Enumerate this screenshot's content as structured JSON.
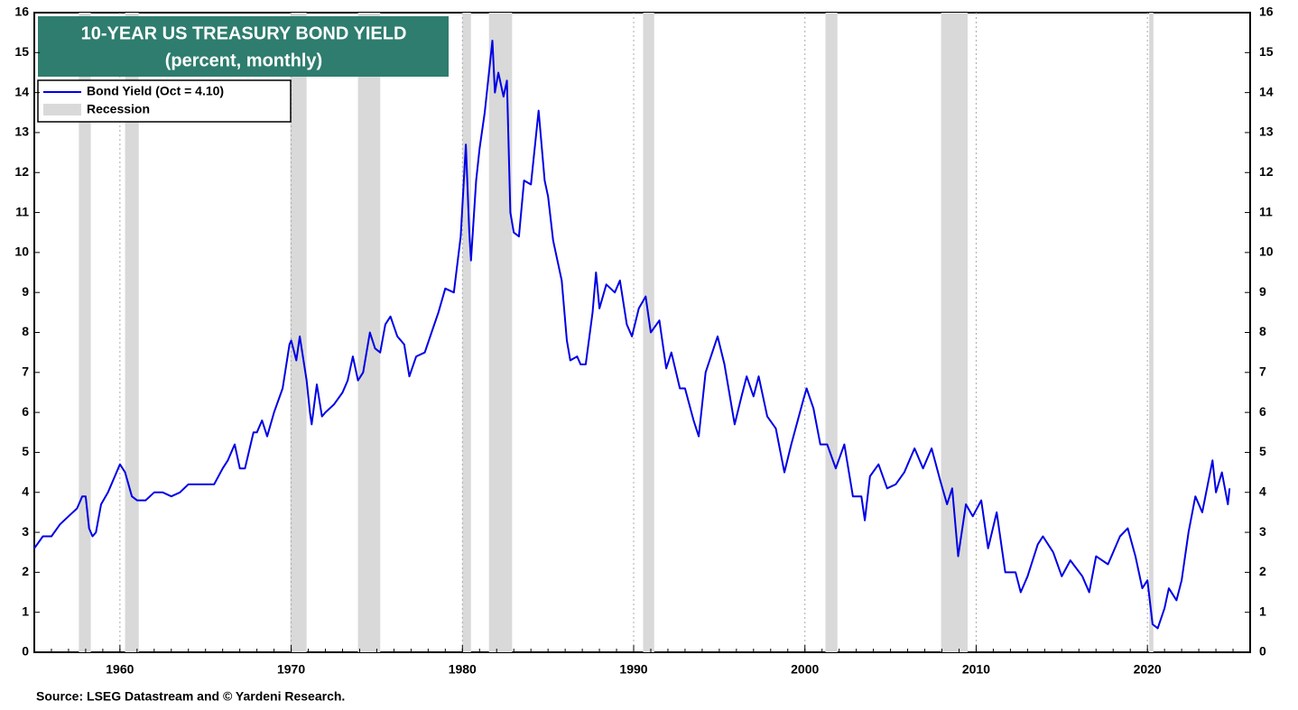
{
  "chart_data": {
    "type": "line",
    "title": "10-YEAR US TREASURY BOND YIELD",
    "subtitle": "(percent, monthly)",
    "source": "Source: LSEG Datastream and © Yardeni Research.",
    "recession_label": "Recession",
    "recession_color": "#d9d9d9",
    "recessions": [
      [
        1957.6,
        1958.3
      ],
      [
        1960.3,
        1961.1
      ],
      [
        1969.95,
        1970.9
      ],
      [
        1973.9,
        1975.2
      ],
      [
        1980.0,
        1980.5
      ],
      [
        1981.55,
        1982.9
      ],
      [
        1990.55,
        1991.2
      ],
      [
        2001.2,
        2001.9
      ],
      [
        2007.95,
        2009.5
      ],
      [
        2020.1,
        2020.35
      ]
    ],
    "xlim": [
      1955,
      2026
    ],
    "xticks": [
      1960,
      1970,
      1980,
      1990,
      2000,
      2010,
      2020
    ],
    "ylim": [
      0,
      16
    ],
    "yticks": [
      0,
      1,
      2,
      3,
      4,
      5,
      6,
      7,
      8,
      9,
      10,
      11,
      12,
      13,
      14,
      15,
      16
    ],
    "grid": true,
    "legend": "upper left",
    "x": [
      1955.0,
      1955.5,
      1956.0,
      1956.5,
      1957.0,
      1957.5,
      1957.8,
      1958.0,
      1958.2,
      1958.4,
      1958.6,
      1958.9,
      1959.3,
      1959.7,
      1960.0,
      1960.3,
      1960.7,
      1961.0,
      1961.5,
      1962.0,
      1962.5,
      1963.0,
      1963.5,
      1964.0,
      1964.5,
      1965.0,
      1965.5,
      1966.0,
      1966.3,
      1966.7,
      1967.0,
      1967.3,
      1967.8,
      1968.0,
      1968.3,
      1968.6,
      1969.0,
      1969.5,
      1969.9,
      1970.0,
      1970.3,
      1970.5,
      1970.9,
      1971.1,
      1971.2,
      1971.5,
      1971.8,
      1972.0,
      1972.5,
      1973.0,
      1973.3,
      1973.6,
      1973.9,
      1974.2,
      1974.6,
      1974.9,
      1975.2,
      1975.5,
      1975.8,
      1976.2,
      1976.6,
      1976.9,
      1977.3,
      1977.8,
      1978.2,
      1978.6,
      1979.0,
      1979.5,
      1979.9,
      1980.2,
      1980.4,
      1980.5,
      1980.8,
      1981.0,
      1981.3,
      1981.75,
      1981.9,
      1982.1,
      1982.4,
      1982.6,
      1982.8,
      1983.0,
      1983.3,
      1983.6,
      1984.0,
      1984.45,
      1984.8,
      1985.0,
      1985.3,
      1985.8,
      1986.1,
      1986.3,
      1986.7,
      1986.9,
      1987.2,
      1987.6,
      1987.8,
      1988.0,
      1988.4,
      1988.9,
      1989.2,
      1989.6,
      1989.9,
      1990.3,
      1990.7,
      1991.0,
      1991.5,
      1991.9,
      1992.2,
      1992.7,
      1993.0,
      1993.5,
      1993.8,
      1994.2,
      1994.9,
      1995.3,
      1995.9,
      1996.3,
      1996.6,
      1997.0,
      1997.3,
      1997.8,
      1998.3,
      1998.8,
      1999.2,
      1999.9,
      2000.1,
      2000.5,
      2000.9,
      2001.3,
      2001.8,
      2002.3,
      2002.8,
      2003.3,
      2003.5,
      2003.8,
      2004.3,
      2004.8,
      2005.3,
      2005.8,
      2006.4,
      2006.9,
      2007.4,
      2007.9,
      2008.3,
      2008.6,
      2008.95,
      2009.4,
      2009.8,
      2010.3,
      2010.7,
      2011.2,
      2011.7,
      2012.3,
      2012.6,
      2013.0,
      2013.6,
      2013.9,
      2014.5,
      2015.0,
      2015.5,
      2016.2,
      2016.6,
      2017.0,
      2017.7,
      2018.4,
      2018.85,
      2019.3,
      2019.7,
      2020.0,
      2020.3,
      2020.6,
      2021.0,
      2021.25,
      2021.7,
      2022.0,
      2022.4,
      2022.8,
      2023.2,
      2023.8,
      2024.0,
      2024.35,
      2024.7,
      2024.8
    ],
    "series": [
      {
        "name": "Bond Yield (Oct = 4.10)",
        "color": "#0000e6",
        "values": [
          2.6,
          2.9,
          2.9,
          3.2,
          3.4,
          3.6,
          3.9,
          3.9,
          3.1,
          2.9,
          3.0,
          3.7,
          4.0,
          4.4,
          4.7,
          4.5,
          3.9,
          3.8,
          3.8,
          4.0,
          4.0,
          3.9,
          4.0,
          4.2,
          4.2,
          4.2,
          4.2,
          4.6,
          4.8,
          5.2,
          4.6,
          4.6,
          5.5,
          5.5,
          5.8,
          5.4,
          6.0,
          6.6,
          7.7,
          7.8,
          7.3,
          7.9,
          6.8,
          6.0,
          5.7,
          6.7,
          5.9,
          6.0,
          6.2,
          6.5,
          6.8,
          7.4,
          6.8,
          7.0,
          8.0,
          7.6,
          7.5,
          8.2,
          8.4,
          7.9,
          7.7,
          6.9,
          7.4,
          7.5,
          8.0,
          8.5,
          9.1,
          9.0,
          10.4,
          12.7,
          10.5,
          9.8,
          11.8,
          12.6,
          13.5,
          15.3,
          14.0,
          14.5,
          13.9,
          14.3,
          11.0,
          10.5,
          10.4,
          11.8,
          11.7,
          13.55,
          11.8,
          11.4,
          10.3,
          9.3,
          7.8,
          7.3,
          7.4,
          7.2,
          7.2,
          8.5,
          9.5,
          8.6,
          9.2,
          9.0,
          9.3,
          8.2,
          7.9,
          8.6,
          8.9,
          8.0,
          8.3,
          7.1,
          7.5,
          6.6,
          6.6,
          5.8,
          5.4,
          7.0,
          7.9,
          7.2,
          5.7,
          6.4,
          6.9,
          6.4,
          6.9,
          5.9,
          5.6,
          4.5,
          5.2,
          6.3,
          6.6,
          6.1,
          5.2,
          5.2,
          4.6,
          5.2,
          3.9,
          3.9,
          3.3,
          4.4,
          4.7,
          4.1,
          4.2,
          4.5,
          5.1,
          4.6,
          5.1,
          4.3,
          3.7,
          4.1,
          2.4,
          3.7,
          3.4,
          3.8,
          2.6,
          3.5,
          2.0,
          2.0,
          1.5,
          1.9,
          2.7,
          2.9,
          2.5,
          1.9,
          2.3,
          1.9,
          1.5,
          2.4,
          2.2,
          2.9,
          3.1,
          2.4,
          1.6,
          1.8,
          0.7,
          0.6,
          1.1,
          1.6,
          1.3,
          1.8,
          3.0,
          3.9,
          3.5,
          4.8,
          4.0,
          4.5,
          3.7,
          4.1
        ]
      }
    ]
  }
}
